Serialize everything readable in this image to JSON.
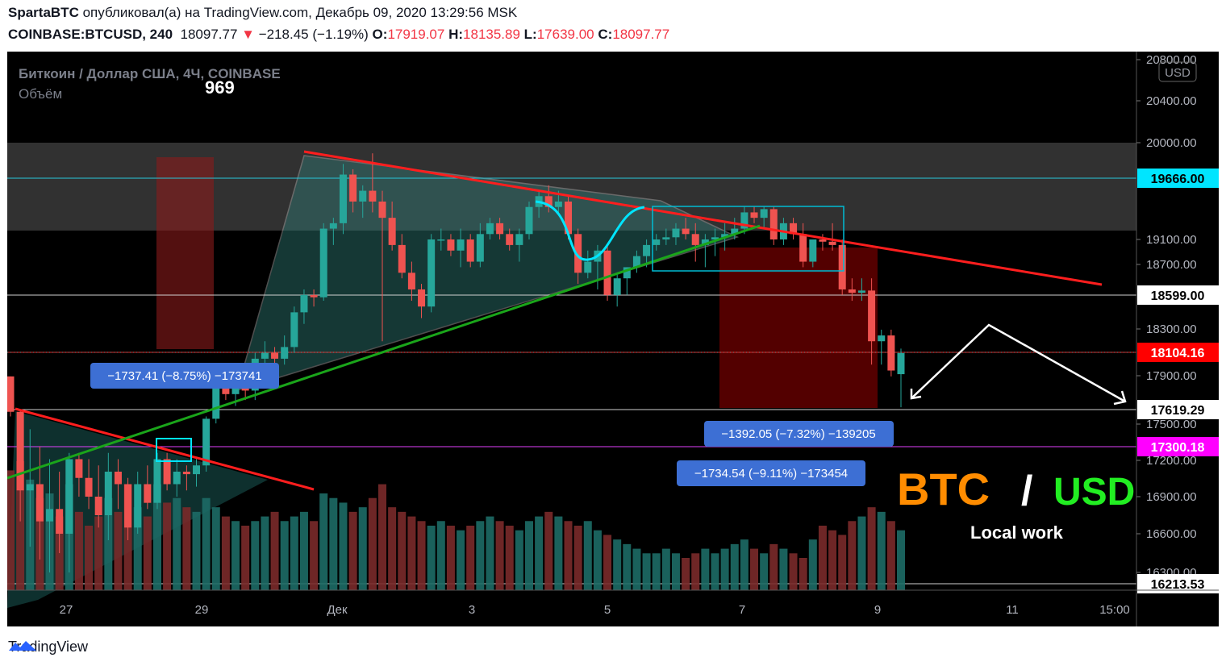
{
  "header": {
    "author": "SpartaBTC",
    "published_text": "опубликовал(а) на TradingView.com, Декабрь 09, 2020 13:29:56 MSK",
    "symbol": "COINBASE:BTCUSD, 240",
    "last_price": "18097.77",
    "change_arrow": "▼",
    "change": "−218.45 (−1.19%)",
    "o_label": "O:",
    "o_value": "17919.07",
    "h_label": "H:",
    "h_value": "18135.89",
    "l_label": "L:",
    "l_value": "17639.00",
    "c_label": "C:",
    "c_value": "18097.77"
  },
  "legend": {
    "series_title": "Биткоин / Доллар США, 4Ч, COINBASE",
    "volume_label": "Объём",
    "volume_value": "969"
  },
  "currency_button": "USD",
  "annotations": {
    "measure_1": "−1737.41 (−8.75%) −173741",
    "measure_2": "−1392.05 (−7.32%) −139205",
    "measure_3": "−1734.54 (−9.11%) −173454",
    "btc_text": "BTC",
    "slash_text": "/",
    "usd_text": "USD",
    "local_work": "Local work"
  },
  "footer": {
    "brand": "TradingView"
  },
  "colors": {
    "up": "#26a69a",
    "down": "#ef5350",
    "resistance": "#ff1e1e",
    "support": "#1aa51a",
    "cyan": "#00e5ff",
    "magenta": "#e040fb",
    "btc": "#ff8c00",
    "usd": "#22ee22"
  },
  "chart_data": {
    "type": "candlestick",
    "title": "Биткоин / Доллар США, 4Ч, COINBASE",
    "y_axis_labels": [
      "20800.00",
      "20400.00",
      "20000.00",
      "19100.00",
      "18700.00",
      "18300.00",
      "17900.00",
      "17500.00",
      "17200.00",
      "16900.00",
      "16600.00",
      "16300.00"
    ],
    "x_axis_labels": [
      "27",
      "29",
      "Дек",
      "3",
      "5",
      "7",
      "9",
      "11",
      "15:00"
    ],
    "price_tags": [
      {
        "value": "19666.00",
        "style": "cyan"
      },
      {
        "value": "18599.00",
        "style": "white"
      },
      {
        "value": "18104.16",
        "style": "red"
      },
      {
        "value": "17619.29",
        "style": "white"
      },
      {
        "value": "17300.18",
        "style": "magenta"
      },
      {
        "value": "16213.53",
        "style": "white"
      }
    ],
    "candles": [
      {
        "o": 17900,
        "h": 17900,
        "l": 17560,
        "c": 17600
      },
      {
        "o": 17600,
        "h": 17610,
        "l": 16700,
        "c": 16950
      },
      {
        "o": 16950,
        "h": 17450,
        "l": 16500,
        "c": 17000
      },
      {
        "o": 17000,
        "h": 17300,
        "l": 16400,
        "c": 16700
      },
      {
        "o": 16700,
        "h": 17200,
        "l": 16300,
        "c": 16800
      },
      {
        "o": 16800,
        "h": 17100,
        "l": 16450,
        "c": 16600
      },
      {
        "o": 16600,
        "h": 17250,
        "l": 16300,
        "c": 17200
      },
      {
        "o": 17200,
        "h": 17250,
        "l": 16900,
        "c": 17050
      },
      {
        "o": 17050,
        "h": 17200,
        "l": 16800,
        "c": 16900
      },
      {
        "o": 16900,
        "h": 17150,
        "l": 16650,
        "c": 16750
      },
      {
        "o": 16750,
        "h": 17250,
        "l": 16550,
        "c": 17100
      },
      {
        "o": 17100,
        "h": 17200,
        "l": 16800,
        "c": 17000
      },
      {
        "o": 17000,
        "h": 17050,
        "l": 16550,
        "c": 16650
      },
      {
        "o": 16650,
        "h": 17100,
        "l": 16600,
        "c": 17000
      },
      {
        "o": 17000,
        "h": 17150,
        "l": 16800,
        "c": 16850
      },
      {
        "o": 16850,
        "h": 17250,
        "l": 16800,
        "c": 17200
      },
      {
        "o": 17200,
        "h": 17250,
        "l": 16950,
        "c": 17000
      },
      {
        "o": 17000,
        "h": 17200,
        "l": 16900,
        "c": 17100
      },
      {
        "o": 17100,
        "h": 17150,
        "l": 16950,
        "c": 17080
      },
      {
        "o": 17080,
        "h": 17200,
        "l": 16980,
        "c": 17150
      },
      {
        "o": 17150,
        "h": 17560,
        "l": 17100,
        "c": 17540
      },
      {
        "o": 17540,
        "h": 17950,
        "l": 17500,
        "c": 17800
      },
      {
        "o": 17800,
        "h": 17900,
        "l": 17700,
        "c": 17750
      },
      {
        "o": 17750,
        "h": 17950,
        "l": 17650,
        "c": 17800
      },
      {
        "o": 17800,
        "h": 17850,
        "l": 17700,
        "c": 17780
      },
      {
        "o": 17780,
        "h": 18100,
        "l": 17700,
        "c": 18050
      },
      {
        "o": 18050,
        "h": 18200,
        "l": 17950,
        "c": 18100
      },
      {
        "o": 18100,
        "h": 18150,
        "l": 18000,
        "c": 18050
      },
      {
        "o": 18050,
        "h": 18250,
        "l": 18000,
        "c": 18150
      },
      {
        "o": 18150,
        "h": 18500,
        "l": 18100,
        "c": 18450
      },
      {
        "o": 18450,
        "h": 18650,
        "l": 18350,
        "c": 18600
      },
      {
        "o": 18600,
        "h": 18650,
        "l": 18500,
        "c": 18580
      },
      {
        "o": 18580,
        "h": 19250,
        "l": 18550,
        "c": 19200
      },
      {
        "o": 19200,
        "h": 19300,
        "l": 19050,
        "c": 19250
      },
      {
        "o": 19250,
        "h": 19800,
        "l": 19150,
        "c": 19700
      },
      {
        "o": 19700,
        "h": 19750,
        "l": 19350,
        "c": 19450
      },
      {
        "o": 19450,
        "h": 19600,
        "l": 19300,
        "c": 19550
      },
      {
        "o": 19550,
        "h": 19900,
        "l": 19350,
        "c": 19450
      },
      {
        "o": 19450,
        "h": 19550,
        "l": 18200,
        "c": 19300
      },
      {
        "o": 19300,
        "h": 19450,
        "l": 19000,
        "c": 19050
      },
      {
        "o": 19050,
        "h": 19150,
        "l": 18750,
        "c": 18800
      },
      {
        "o": 18800,
        "h": 18900,
        "l": 18550,
        "c": 18650
      },
      {
        "o": 18650,
        "h": 18700,
        "l": 18400,
        "c": 18500
      },
      {
        "o": 18500,
        "h": 19150,
        "l": 18450,
        "c": 19100
      },
      {
        "o": 19100,
        "h": 19200,
        "l": 19000,
        "c": 19100
      },
      {
        "o": 19100,
        "h": 19150,
        "l": 18950,
        "c": 19000
      },
      {
        "o": 19000,
        "h": 19200,
        "l": 18850,
        "c": 19100
      },
      {
        "o": 19100,
        "h": 19150,
        "l": 18850,
        "c": 18900
      },
      {
        "o": 18900,
        "h": 19250,
        "l": 18850,
        "c": 19150
      },
      {
        "o": 19150,
        "h": 19300,
        "l": 19100,
        "c": 19250
      },
      {
        "o": 19250,
        "h": 19300,
        "l": 19100,
        "c": 19150
      },
      {
        "o": 19150,
        "h": 19200,
        "l": 19000,
        "c": 19050
      },
      {
        "o": 19050,
        "h": 19200,
        "l": 18900,
        "c": 19150
      },
      {
        "o": 19150,
        "h": 19450,
        "l": 19100,
        "c": 19400
      },
      {
        "o": 19400,
        "h": 19550,
        "l": 19300,
        "c": 19500
      },
      {
        "o": 19500,
        "h": 19600,
        "l": 19350,
        "c": 19400
      },
      {
        "o": 19400,
        "h": 19550,
        "l": 19350,
        "c": 19450
      },
      {
        "o": 19450,
        "h": 19500,
        "l": 19100,
        "c": 19150
      },
      {
        "o": 19150,
        "h": 19200,
        "l": 18700,
        "c": 18800
      },
      {
        "o": 18800,
        "h": 19000,
        "l": 18750,
        "c": 18900
      },
      {
        "o": 18900,
        "h": 19050,
        "l": 18650,
        "c": 19000
      },
      {
        "o": 19000,
        "h": 19050,
        "l": 18550,
        "c": 18600
      },
      {
        "o": 18600,
        "h": 18800,
        "l": 18500,
        "c": 18750
      },
      {
        "o": 18750,
        "h": 18850,
        "l": 18600,
        "c": 18850
      },
      {
        "o": 18850,
        "h": 19000,
        "l": 18800,
        "c": 18950
      },
      {
        "o": 18950,
        "h": 19100,
        "l": 18850,
        "c": 19050
      },
      {
        "o": 19050,
        "h": 19150,
        "l": 19000,
        "c": 19100
      },
      {
        "o": 19100,
        "h": 19200,
        "l": 19050,
        "c": 19120
      },
      {
        "o": 19120,
        "h": 19250,
        "l": 19050,
        "c": 19200
      },
      {
        "o": 19200,
        "h": 19300,
        "l": 19100,
        "c": 19150
      },
      {
        "o": 19150,
        "h": 19250,
        "l": 18900,
        "c": 19050
      },
      {
        "o": 19050,
        "h": 19150,
        "l": 18850,
        "c": 19100
      },
      {
        "o": 19100,
        "h": 19200,
        "l": 18950,
        "c": 19120
      },
      {
        "o": 19120,
        "h": 19250,
        "l": 19000,
        "c": 19150
      },
      {
        "o": 19150,
        "h": 19300,
        "l": 19100,
        "c": 19200
      },
      {
        "o": 19200,
        "h": 19400,
        "l": 19150,
        "c": 19350
      },
      {
        "o": 19350,
        "h": 19400,
        "l": 19250,
        "c": 19300
      },
      {
        "o": 19300,
        "h": 19400,
        "l": 19200,
        "c": 19380
      },
      {
        "o": 19380,
        "h": 19400,
        "l": 19050,
        "c": 19100
      },
      {
        "o": 19100,
        "h": 19300,
        "l": 19050,
        "c": 19250
      },
      {
        "o": 19250,
        "h": 19300,
        "l": 19100,
        "c": 19150
      },
      {
        "o": 19150,
        "h": 19250,
        "l": 18850,
        "c": 18900
      },
      {
        "o": 18900,
        "h": 19100,
        "l": 18850,
        "c": 19100
      },
      {
        "o": 19100,
        "h": 19150,
        "l": 19000,
        "c": 19080
      },
      {
        "o": 19080,
        "h": 19250,
        "l": 19000,
        "c": 19050
      },
      {
        "o": 19050,
        "h": 19100,
        "l": 18600,
        "c": 18650
      },
      {
        "o": 18650,
        "h": 18750,
        "l": 18550,
        "c": 18620
      },
      {
        "o": 18620,
        "h": 18750,
        "l": 18550,
        "c": 18640
      },
      {
        "o": 18640,
        "h": 18750,
        "l": 18000,
        "c": 18200
      },
      {
        "o": 18200,
        "h": 18300,
        "l": 18000,
        "c": 18250
      },
      {
        "o": 18250,
        "h": 18300,
        "l": 17900,
        "c": 17950
      },
      {
        "o": 17919,
        "h": 18136,
        "l": 17639,
        "c": 18098
      }
    ],
    "volumes": [
      260,
      280,
      240,
      200,
      210,
      160,
      230,
      170,
      140,
      160,
      200,
      170,
      230,
      180,
      160,
      230,
      190,
      200,
      180,
      170,
      200,
      180,
      160,
      150,
      140,
      150,
      160,
      170,
      150,
      160,
      170,
      150,
      210,
      200,
      190,
      170,
      180,
      200,
      230,
      180,
      170,
      160,
      150,
      140,
      150,
      140,
      130,
      140,
      150,
      160,
      150,
      140,
      130,
      150,
      160,
      170,
      160,
      150,
      140,
      150,
      130,
      120,
      110,
      100,
      90,
      80,
      80,
      90,
      80,
      70,
      80,
      90,
      80,
      90,
      100,
      110,
      90,
      80,
      100,
      90,
      80,
      70,
      110,
      140,
      130,
      120,
      150,
      160,
      180,
      170,
      150,
      130
    ]
  }
}
